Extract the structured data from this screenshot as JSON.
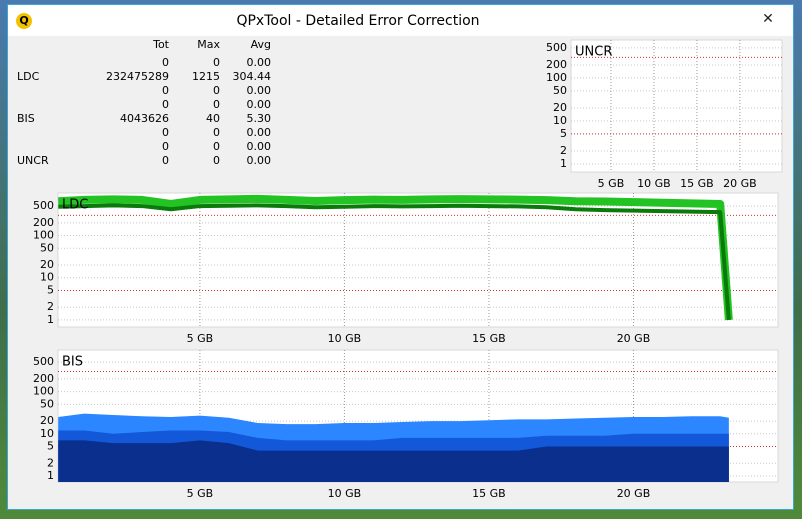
{
  "window": {
    "title": "QPxTool - Detailed Error Correction",
    "close": "✕"
  },
  "table": {
    "columns": [
      "Tot",
      "Max",
      "Avg"
    ],
    "rows": [
      [
        null,
        "0",
        "0",
        "0.00"
      ],
      [
        "LDC",
        "232475289",
        "1215",
        "304.44"
      ],
      [
        null,
        "0",
        "0",
        "0.00"
      ],
      [
        null,
        "0",
        "0",
        "0.00"
      ],
      [
        "BIS",
        "4043626",
        "40",
        "5.30"
      ],
      [
        null,
        "0",
        "0",
        "0.00"
      ],
      [
        null,
        "0",
        "0",
        "0.00"
      ],
      [
        "UNCR",
        "0",
        "0",
        "0.00"
      ]
    ]
  },
  "chart_data": [
    {
      "type": "line",
      "title": "UNCR",
      "x": [],
      "series": [],
      "xlim": [
        0.35,
        24.9
      ],
      "ylim": [
        0.65,
        760
      ],
      "log_scale": true,
      "grid": true,
      "thresholds": [
        300,
        5
      ],
      "xticks": [
        {
          "value": 5,
          "label": "5 GB"
        },
        {
          "value": 10,
          "label": "10 GB"
        },
        {
          "value": 15,
          "label": "15 GB"
        },
        {
          "value": 20,
          "label": "20 GB"
        }
      ],
      "yticks": [
        1,
        2,
        5,
        10,
        20,
        50,
        100,
        200,
        500
      ]
    },
    {
      "type": "line",
      "title": "LDC",
      "x": [
        0.1,
        1,
        2,
        3,
        4,
        5,
        6,
        7,
        8,
        9,
        10,
        11,
        12,
        13,
        14,
        15,
        16,
        17,
        18,
        19,
        20,
        21,
        22,
        23,
        23.3
      ],
      "series": [
        {
          "color": "#22c322",
          "values": [
            650,
            700,
            720,
            700,
            560,
            700,
            720,
            740,
            700,
            660,
            690,
            710,
            700,
            720,
            730,
            720,
            710,
            690,
            650,
            640,
            620,
            600,
            580,
            560,
            1
          ]
        },
        {
          "color": "#0a7a0a",
          "values": [
            480,
            500,
            520,
            500,
            420,
            500,
            510,
            520,
            500,
            470,
            480,
            500,
            490,
            500,
            510,
            500,
            490,
            470,
            420,
            400,
            390,
            380,
            370,
            360,
            1
          ]
        }
      ],
      "xlim": [
        0.09,
        25
      ],
      "ylim": [
        0.68,
        1020
      ],
      "log_scale": true,
      "grid": true,
      "thresholds": [
        300,
        5
      ],
      "xticks": [
        {
          "value": 5,
          "label": "5 GB"
        },
        {
          "value": 10,
          "label": "10 GB"
        },
        {
          "value": 15,
          "label": "15 GB"
        },
        {
          "value": 20,
          "label": "20 GB"
        }
      ],
      "yticks": [
        1,
        2,
        5,
        10,
        20,
        50,
        100,
        200,
        500
      ]
    },
    {
      "type": "area",
      "title": "BIS",
      "x": [
        0.1,
        1,
        2,
        3,
        4,
        5,
        6,
        7,
        8,
        9,
        10,
        11,
        12,
        13,
        14,
        15,
        16,
        17,
        18,
        19,
        20,
        21,
        22,
        23,
        23.3
      ],
      "series": [
        {
          "color": "#2b86ff",
          "values": [
            25,
            30,
            28,
            26,
            25,
            27,
            24,
            18,
            17,
            17,
            18,
            18,
            19,
            20,
            20,
            21,
            22,
            22,
            23,
            24,
            25,
            25,
            26,
            26,
            24
          ]
        },
        {
          "color": "#1258d8",
          "values": [
            12,
            12,
            10,
            11,
            12,
            12,
            11,
            8,
            7,
            7,
            7,
            7,
            8,
            8,
            8,
            8,
            8,
            9,
            9,
            9,
            10,
            10,
            10,
            10,
            10
          ]
        },
        {
          "color": "#0b2f8c",
          "values": [
            7,
            7,
            6,
            6,
            6,
            7,
            6,
            4,
            4,
            4,
            4,
            4,
            4,
            4,
            4,
            4,
            4,
            5,
            5,
            5,
            5,
            5,
            5,
            5,
            5
          ]
        }
      ],
      "xlim": [
        0.09,
        25
      ],
      "ylim": [
        0.72,
        970
      ],
      "log_scale": true,
      "grid": true,
      "thresholds": [
        300,
        5
      ],
      "xticks": [
        {
          "value": 5,
          "label": "5 GB"
        },
        {
          "value": 10,
          "label": "10 GB"
        },
        {
          "value": 15,
          "label": "15 GB"
        },
        {
          "value": 20,
          "label": "20 GB"
        }
      ],
      "yticks": [
        1,
        2,
        5,
        10,
        20,
        50,
        100,
        200,
        500
      ]
    }
  ]
}
